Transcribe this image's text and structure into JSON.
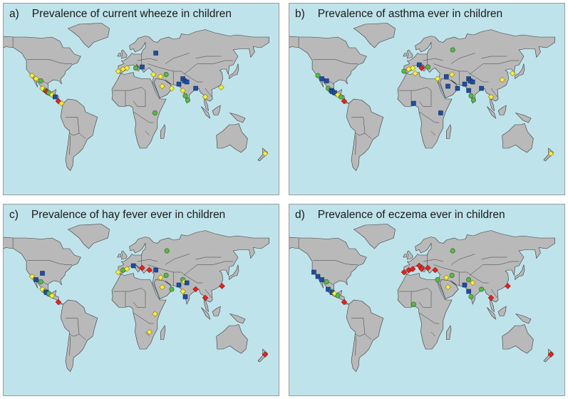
{
  "panels": [
    {
      "label": "a)",
      "title": "Prevalence of current wheeze in children",
      "markers": [
        {
          "lon": -117,
          "lat": 34,
          "shape": "diamond",
          "color": "yellow"
        },
        {
          "lon": -112,
          "lat": 31,
          "shape": "diamond",
          "color": "yellow"
        },
        {
          "lon": -106,
          "lat": 29,
          "shape": "circle",
          "color": "green"
        },
        {
          "lon": -104,
          "lat": 22,
          "shape": "diamond",
          "color": "yellow"
        },
        {
          "lon": -100,
          "lat": 20,
          "shape": "circle",
          "color": "green"
        },
        {
          "lon": -99,
          "lat": 19,
          "shape": "diamond",
          "color": "red"
        },
        {
          "lon": -96,
          "lat": 18,
          "shape": "circle",
          "color": "green"
        },
        {
          "lon": -92,
          "lat": 16,
          "shape": "diamond",
          "color": "yellow"
        },
        {
          "lon": -88,
          "lat": 14,
          "shape": "square",
          "color": "blue"
        },
        {
          "lon": -84,
          "lat": 10,
          "shape": "diamond",
          "color": "red"
        },
        {
          "lon": -80,
          "lat": 8,
          "shape": "diamond",
          "color": "yellow"
        },
        {
          "lon": -9,
          "lat": 38,
          "shape": "diamond",
          "color": "yellow"
        },
        {
          "lon": -3,
          "lat": 40,
          "shape": "diamond",
          "color": "yellow"
        },
        {
          "lon": 2,
          "lat": 41,
          "shape": "diamond",
          "color": "yellow"
        },
        {
          "lon": 13,
          "lat": 41,
          "shape": "circle",
          "color": "green"
        },
        {
          "lon": 21,
          "lat": 42,
          "shape": "square",
          "color": "blue"
        },
        {
          "lon": 38,
          "lat": 55,
          "shape": "square",
          "color": "blue"
        },
        {
          "lon": 35,
          "lat": 35,
          "shape": "diamond",
          "color": "yellow"
        },
        {
          "lon": 44,
          "lat": 33,
          "shape": "diamond",
          "color": "yellow"
        },
        {
          "lon": 51,
          "lat": 35,
          "shape": "circle",
          "color": "green"
        },
        {
          "lon": 46,
          "lat": 24,
          "shape": "diamond",
          "color": "yellow"
        },
        {
          "lon": 58,
          "lat": 22,
          "shape": "diamond",
          "color": "yellow"
        },
        {
          "lon": 67,
          "lat": 26,
          "shape": "square",
          "color": "blue"
        },
        {
          "lon": 72,
          "lat": 31,
          "shape": "square",
          "color": "blue"
        },
        {
          "lon": 74,
          "lat": 29,
          "shape": "square",
          "color": "blue"
        },
        {
          "lon": 77,
          "lat": 28,
          "shape": "square",
          "color": "blue"
        },
        {
          "lon": 72,
          "lat": 20,
          "shape": "diamond",
          "color": "yellow"
        },
        {
          "lon": 75,
          "lat": 15,
          "shape": "circle",
          "color": "green"
        },
        {
          "lon": 78,
          "lat": 11,
          "shape": "circle",
          "color": "green"
        },
        {
          "lon": 88,
          "lat": 22,
          "shape": "square",
          "color": "blue"
        },
        {
          "lon": 100,
          "lat": 14,
          "shape": "diamond",
          "color": "yellow"
        },
        {
          "lon": 120,
          "lat": 23,
          "shape": "diamond",
          "color": "yellow"
        },
        {
          "lon": 37,
          "lat": -1,
          "shape": "circle",
          "color": "green"
        },
        {
          "lon": 175,
          "lat": -39,
          "shape": "diamond",
          "color": "yellow"
        }
      ]
    },
    {
      "label": "b)",
      "title": "Prevalence of asthma ever in children",
      "markers": [
        {
          "lon": -117,
          "lat": 34,
          "shape": "circle",
          "color": "green"
        },
        {
          "lon": -112,
          "lat": 31,
          "shape": "square",
          "color": "blue"
        },
        {
          "lon": -106,
          "lat": 29,
          "shape": "square",
          "color": "blue"
        },
        {
          "lon": -104,
          "lat": 22,
          "shape": "circle",
          "color": "green"
        },
        {
          "lon": -100,
          "lat": 20,
          "shape": "square",
          "color": "blue"
        },
        {
          "lon": -99,
          "lat": 19,
          "shape": "square",
          "color": "blue"
        },
        {
          "lon": -96,
          "lat": 18,
          "shape": "square",
          "color": "blue"
        },
        {
          "lon": -92,
          "lat": 16,
          "shape": "diamond",
          "color": "yellow"
        },
        {
          "lon": -88,
          "lat": 14,
          "shape": "circle",
          "color": "green"
        },
        {
          "lon": -84,
          "lat": 10,
          "shape": "diamond",
          "color": "red"
        },
        {
          "lon": -9,
          "lat": 38,
          "shape": "circle",
          "color": "green"
        },
        {
          "lon": -3,
          "lat": 40,
          "shape": "diamond",
          "color": "yellow"
        },
        {
          "lon": 2,
          "lat": 41,
          "shape": "diamond",
          "color": "yellow"
        },
        {
          "lon": 10,
          "lat": 44,
          "shape": "square",
          "color": "blue"
        },
        {
          "lon": 13,
          "lat": 41,
          "shape": "diamond",
          "color": "red"
        },
        {
          "lon": 21,
          "lat": 42,
          "shape": "circle",
          "color": "green"
        },
        {
          "lon": 5,
          "lat": 36,
          "shape": "diamond",
          "color": "yellow"
        },
        {
          "lon": 3,
          "lat": 8,
          "shape": "square",
          "color": "blue"
        },
        {
          "lon": 33,
          "lat": 31,
          "shape": "diamond",
          "color": "yellow"
        },
        {
          "lon": 44,
          "lat": 33,
          "shape": "square",
          "color": "blue"
        },
        {
          "lon": 51,
          "lat": 35,
          "shape": "diamond",
          "color": "yellow"
        },
        {
          "lon": 52,
          "lat": 58,
          "shape": "circle",
          "color": "green"
        },
        {
          "lon": 46,
          "lat": 24,
          "shape": "square",
          "color": "blue"
        },
        {
          "lon": 58,
          "lat": 22,
          "shape": "square",
          "color": "blue"
        },
        {
          "lon": 67,
          "lat": 26,
          "shape": "square",
          "color": "blue"
        },
        {
          "lon": 72,
          "lat": 31,
          "shape": "square",
          "color": "blue"
        },
        {
          "lon": 74,
          "lat": 29,
          "shape": "square",
          "color": "blue"
        },
        {
          "lon": 77,
          "lat": 28,
          "shape": "square",
          "color": "blue"
        },
        {
          "lon": 72,
          "lat": 20,
          "shape": "square",
          "color": "blue"
        },
        {
          "lon": 75,
          "lat": 15,
          "shape": "circle",
          "color": "green"
        },
        {
          "lon": 78,
          "lat": 11,
          "shape": "circle",
          "color": "green"
        },
        {
          "lon": 88,
          "lat": 22,
          "shape": "square",
          "color": "blue"
        },
        {
          "lon": 100,
          "lat": 14,
          "shape": "diamond",
          "color": "yellow"
        },
        {
          "lon": 114,
          "lat": 30,
          "shape": "diamond",
          "color": "yellow"
        },
        {
          "lon": 127,
          "lat": 36,
          "shape": "diamond",
          "color": "yellow"
        },
        {
          "lon": 37,
          "lat": -1,
          "shape": "square",
          "color": "blue"
        },
        {
          "lon": 175,
          "lat": -39,
          "shape": "diamond",
          "color": "yellow"
        }
      ]
    },
    {
      "label": "c)",
      "title": "Prevalence of hay fever ever in children",
      "markers": [
        {
          "lon": -117,
          "lat": 34,
          "shape": "diamond",
          "color": "yellow"
        },
        {
          "lon": -112,
          "lat": 31,
          "shape": "square",
          "color": "blue"
        },
        {
          "lon": -104,
          "lat": 37,
          "shape": "square",
          "color": "blue"
        },
        {
          "lon": -106,
          "lat": 29,
          "shape": "circle",
          "color": "green"
        },
        {
          "lon": -104,
          "lat": 22,
          "shape": "diamond",
          "color": "yellow"
        },
        {
          "lon": -100,
          "lat": 20,
          "shape": "circle",
          "color": "green"
        },
        {
          "lon": -99,
          "lat": 19,
          "shape": "square",
          "color": "blue"
        },
        {
          "lon": -96,
          "lat": 18,
          "shape": "circle",
          "color": "green"
        },
        {
          "lon": -92,
          "lat": 16,
          "shape": "diamond",
          "color": "yellow"
        },
        {
          "lon": -84,
          "lat": 10,
          "shape": "diamond",
          "color": "red"
        },
        {
          "lon": -9,
          "lat": 38,
          "shape": "diamond",
          "color": "yellow"
        },
        {
          "lon": -3,
          "lat": 40,
          "shape": "circle",
          "color": "green"
        },
        {
          "lon": 2,
          "lat": 41,
          "shape": "diamond",
          "color": "yellow"
        },
        {
          "lon": 10,
          "lat": 44,
          "shape": "square",
          "color": "blue"
        },
        {
          "lon": 21,
          "lat": 42,
          "shape": "diamond",
          "color": "red"
        },
        {
          "lon": 30,
          "lat": 40,
          "shape": "diamond",
          "color": "red"
        },
        {
          "lon": 38,
          "lat": 40,
          "shape": "square",
          "color": "blue"
        },
        {
          "lon": 52,
          "lat": 58,
          "shape": "circle",
          "color": "green"
        },
        {
          "lon": 44,
          "lat": 33,
          "shape": "diamond",
          "color": "yellow"
        },
        {
          "lon": 51,
          "lat": 35,
          "shape": "circle",
          "color": "green"
        },
        {
          "lon": 46,
          "lat": 24,
          "shape": "diamond",
          "color": "yellow"
        },
        {
          "lon": 58,
          "lat": 22,
          "shape": "circle",
          "color": "green"
        },
        {
          "lon": 67,
          "lat": 26,
          "shape": "square",
          "color": "blue"
        },
        {
          "lon": 72,
          "lat": 31,
          "shape": "circle",
          "color": "green"
        },
        {
          "lon": 74,
          "lat": 29,
          "shape": "diamond",
          "color": "yellow"
        },
        {
          "lon": 77,
          "lat": 28,
          "shape": "square",
          "color": "blue"
        },
        {
          "lon": 72,
          "lat": 20,
          "shape": "diamond",
          "color": "yellow"
        },
        {
          "lon": 75,
          "lat": 15,
          "shape": "square",
          "color": "blue"
        },
        {
          "lon": 88,
          "lat": 22,
          "shape": "diamond",
          "color": "red"
        },
        {
          "lon": 100,
          "lat": 14,
          "shape": "diamond",
          "color": "red"
        },
        {
          "lon": 121,
          "lat": 25,
          "shape": "diamond",
          "color": "red"
        },
        {
          "lon": 37,
          "lat": -1,
          "shape": "diamond",
          "color": "yellow"
        },
        {
          "lon": 30,
          "lat": -18,
          "shape": "diamond",
          "color": "yellow"
        },
        {
          "lon": 175,
          "lat": -39,
          "shape": "diamond",
          "color": "red"
        }
      ]
    },
    {
      "label": "d)",
      "title": "Prevalence of eczema ever in children",
      "markers": [
        {
          "lon": -122,
          "lat": 38,
          "shape": "square",
          "color": "blue"
        },
        {
          "lon": -117,
          "lat": 34,
          "shape": "square",
          "color": "blue"
        },
        {
          "lon": -112,
          "lat": 31,
          "shape": "square",
          "color": "blue"
        },
        {
          "lon": -106,
          "lat": 29,
          "shape": "circle",
          "color": "green"
        },
        {
          "lon": -104,
          "lat": 22,
          "shape": "square",
          "color": "blue"
        },
        {
          "lon": -100,
          "lat": 20,
          "shape": "circle",
          "color": "green"
        },
        {
          "lon": -99,
          "lat": 19,
          "shape": "square",
          "color": "blue"
        },
        {
          "lon": -96,
          "lat": 18,
          "shape": "diamond",
          "color": "yellow"
        },
        {
          "lon": -92,
          "lat": 16,
          "shape": "circle",
          "color": "green"
        },
        {
          "lon": -84,
          "lat": 10,
          "shape": "diamond",
          "color": "red"
        },
        {
          "lon": -9,
          "lat": 38,
          "shape": "diamond",
          "color": "red"
        },
        {
          "lon": -3,
          "lat": 40,
          "shape": "diamond",
          "color": "red"
        },
        {
          "lon": 2,
          "lat": 41,
          "shape": "diamond",
          "color": "red"
        },
        {
          "lon": 10,
          "lat": 44,
          "shape": "diamond",
          "color": "red"
        },
        {
          "lon": 13,
          "lat": 41,
          "shape": "diamond",
          "color": "red"
        },
        {
          "lon": 21,
          "lat": 42,
          "shape": "diamond",
          "color": "red"
        },
        {
          "lon": 30,
          "lat": 40,
          "shape": "diamond",
          "color": "red"
        },
        {
          "lon": 33,
          "lat": 31,
          "shape": "circle",
          "color": "green"
        },
        {
          "lon": 52,
          "lat": 58,
          "shape": "circle",
          "color": "green"
        },
        {
          "lon": 44,
          "lat": 33,
          "shape": "diamond",
          "color": "yellow"
        },
        {
          "lon": 51,
          "lat": 35,
          "shape": "circle",
          "color": "green"
        },
        {
          "lon": 46,
          "lat": 24,
          "shape": "diamond",
          "color": "yellow"
        },
        {
          "lon": 67,
          "lat": 26,
          "shape": "square",
          "color": "blue"
        },
        {
          "lon": 72,
          "lat": 31,
          "shape": "circle",
          "color": "green"
        },
        {
          "lon": 77,
          "lat": 28,
          "shape": "diamond",
          "color": "yellow"
        },
        {
          "lon": 72,
          "lat": 20,
          "shape": "square",
          "color": "blue"
        },
        {
          "lon": 75,
          "lat": 15,
          "shape": "circle",
          "color": "green"
        },
        {
          "lon": 88,
          "lat": 22,
          "shape": "circle",
          "color": "green"
        },
        {
          "lon": 100,
          "lat": 14,
          "shape": "diamond",
          "color": "red"
        },
        {
          "lon": 121,
          "lat": 25,
          "shape": "diamond",
          "color": "red"
        },
        {
          "lon": 3,
          "lat": 8,
          "shape": "circle",
          "color": "green"
        },
        {
          "lon": 175,
          "lat": -39,
          "shape": "diamond",
          "color": "red"
        }
      ]
    }
  ],
  "colors": {
    "ocean": "#bfe3ea",
    "land": "#b9b9b9",
    "border": "#3a3a3a",
    "yellow": "#f7ee3d",
    "green": "#58b947",
    "blue": "#1f4e9c",
    "red": "#e8231f"
  }
}
